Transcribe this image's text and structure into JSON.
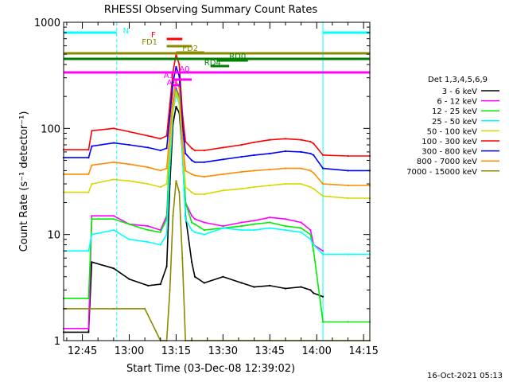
{
  "chart_data": {
    "type": "line",
    "title": "RHESSI Observing Summary Count Rates",
    "xlabel": "Start Time (03-Dec-08 12:39:02)",
    "ylabel": "Count Rate (s⁻¹ detector⁻¹)",
    "y_scale": "log",
    "ylim": [
      1,
      1000
    ],
    "xlim_minutes": [
      39,
      137
    ],
    "x_ticks": [
      {
        "t": 45,
        "label": "12:45"
      },
      {
        "t": 60,
        "label": "13:00"
      },
      {
        "t": 75,
        "label": "13:15"
      },
      {
        "t": 90,
        "label": "13:30"
      },
      {
        "t": 105,
        "label": "13:45"
      },
      {
        "t": 120,
        "label": "14:00"
      },
      {
        "t": 135,
        "label": "14:15"
      }
    ],
    "y_ticks": [
      {
        "v": 1,
        "label": "1"
      },
      {
        "v": 10,
        "label": "10"
      },
      {
        "v": 100,
        "label": "100"
      },
      {
        "v": 1000,
        "label": "1000"
      }
    ],
    "legend_title": "Det 1,3,4,5,6,9",
    "legend_position": "right",
    "series": [
      {
        "name": "3 - 6 keV",
        "color": "#000000",
        "x": [
          39,
          47,
          48,
          55,
          60,
          66,
          70,
          72,
          73,
          74,
          75,
          76,
          77,
          78,
          80,
          81,
          84,
          90,
          96,
          100,
          105,
          110,
          115,
          118,
          119,
          122
        ],
        "values": [
          1.2,
          1.2,
          5.5,
          4.8,
          3.8,
          3.3,
          3.4,
          5,
          30,
          110,
          160,
          140,
          60,
          15,
          5.5,
          4,
          3.5,
          4,
          3.5,
          3.2,
          3.3,
          3.1,
          3.2,
          3,
          2.8,
          2.6
        ]
      },
      {
        "name": "6 - 12 keV",
        "color": "#ff00ff",
        "x": [
          39,
          47,
          48,
          55,
          60,
          66,
          70,
          72,
          73,
          74,
          75,
          76,
          77,
          78,
          80,
          81,
          84,
          90,
          96,
          100,
          105,
          110,
          115,
          118,
          119,
          122
        ],
        "values": [
          1.3,
          1.3,
          15,
          15,
          12.5,
          12,
          11,
          15,
          60,
          160,
          240,
          200,
          80,
          20,
          15,
          14,
          13,
          12,
          13,
          13.5,
          14.5,
          14,
          13,
          11,
          8,
          7
        ]
      },
      {
        "name": "12 - 25 keV",
        "color": "#00ee00",
        "x": [
          39,
          47,
          48,
          55,
          60,
          66,
          70,
          72,
          73,
          74,
          75,
          76,
          77,
          78,
          80,
          81,
          84,
          90,
          96,
          100,
          105,
          110,
          115,
          118,
          119,
          122,
          130,
          137
        ],
        "values": [
          2.5,
          2.5,
          14,
          14,
          12.5,
          11,
          10.5,
          14,
          60,
          150,
          230,
          190,
          80,
          20,
          13,
          12.5,
          11,
          11.5,
          12,
          12.5,
          13,
          12,
          11.5,
          10,
          7,
          1.5,
          1.5,
          1.5
        ]
      },
      {
        "name": "25 - 50 keV",
        "color": "#00ffff",
        "x": [
          39,
          47,
          48,
          55,
          60,
          66,
          70,
          72,
          73,
          74,
          75,
          76,
          77,
          78,
          80,
          81,
          84,
          90,
          96,
          100,
          105,
          110,
          115,
          118,
          119,
          122,
          130,
          137
        ],
        "values": [
          7,
          7,
          10,
          11,
          9,
          8.5,
          8,
          10,
          45,
          140,
          210,
          170,
          60,
          14,
          11,
          10.5,
          10,
          11.5,
          11,
          11,
          11.5,
          11,
          10.5,
          9,
          8,
          6.5,
          6.5,
          6.5
        ]
      },
      {
        "name": "50 - 100 keV",
        "color": "#d8d800",
        "x": [
          39,
          47,
          48,
          55,
          60,
          66,
          70,
          72,
          73,
          74,
          75,
          76,
          77,
          78,
          80,
          81,
          84,
          90,
          96,
          100,
          105,
          110,
          115,
          118,
          119,
          122,
          130,
          137
        ],
        "values": [
          25,
          25,
          30,
          33,
          32,
          30,
          28,
          30,
          70,
          150,
          220,
          180,
          70,
          28,
          25,
          24,
          24,
          26,
          27,
          28,
          29,
          30,
          30,
          28,
          27,
          23,
          22,
          22
        ]
      },
      {
        "name": "100 - 300 keV",
        "color": "#ff0000",
        "x": [
          39,
          47,
          48,
          55,
          60,
          66,
          70,
          72,
          73,
          74,
          75,
          76,
          77,
          78,
          80,
          81,
          84,
          90,
          96,
          100,
          105,
          110,
          115,
          118,
          119,
          122,
          130,
          137
        ],
        "values": [
          63,
          63,
          95,
          100,
          93,
          85,
          80,
          85,
          170,
          340,
          500,
          400,
          140,
          75,
          65,
          62,
          62,
          66,
          70,
          74,
          78,
          80,
          78,
          75,
          72,
          56,
          55,
          55
        ]
      },
      {
        "name": "300 - 800 keV",
        "color": "#0000ff",
        "x": [
          39,
          47,
          48,
          55,
          60,
          66,
          70,
          72,
          73,
          74,
          75,
          76,
          77,
          78,
          80,
          81,
          84,
          90,
          96,
          100,
          105,
          110,
          115,
          118,
          119,
          122,
          130,
          137
        ],
        "values": [
          53,
          53,
          68,
          73,
          70,
          66,
          62,
          65,
          130,
          270,
          380,
          310,
          110,
          58,
          50,
          48,
          48,
          51,
          54,
          56,
          58,
          61,
          60,
          58,
          56,
          42,
          40,
          40
        ]
      },
      {
        "name": "800 - 7000 keV",
        "color": "#ff8c00",
        "x": [
          39,
          47,
          48,
          55,
          60,
          66,
          70,
          72,
          73,
          74,
          75,
          76,
          77,
          78,
          80,
          81,
          84,
          90,
          96,
          100,
          105,
          110,
          115,
          118,
          119,
          122,
          130,
          137
        ],
        "values": [
          37,
          37,
          45,
          48,
          46,
          43,
          40,
          42,
          90,
          200,
          280,
          240,
          80,
          40,
          37,
          36,
          35,
          37,
          39,
          40,
          41,
          42,
          42,
          40,
          38,
          30,
          29,
          29
        ]
      },
      {
        "name": "7000 - 15000 keV",
        "color": "#8b8b00",
        "x": [
          39,
          55,
          65,
          70,
          72,
          73,
          74,
          75,
          76,
          77,
          78,
          80,
          137
        ],
        "values": [
          2,
          2,
          2,
          1,
          1,
          3,
          15,
          32,
          25,
          6,
          1,
          1,
          1
        ]
      }
    ],
    "annotations": [
      "N",
      "F",
      "FD1",
      "FD2",
      "RD0",
      "RD4",
      "A1",
      "A0",
      "A3"
    ]
  },
  "footer": {
    "timestamp": "16-Oct-2021 05:13"
  }
}
